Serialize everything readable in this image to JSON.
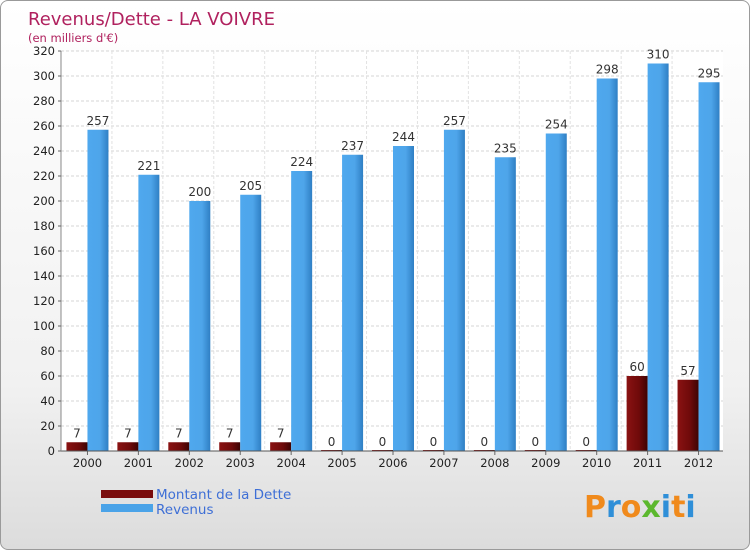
{
  "chart_data": {
    "type": "bar",
    "title": "Revenus/Dette - LA VOIVRE",
    "subtitle": "(en milliers d'€)",
    "categories": [
      "2000",
      "2001",
      "2002",
      "2003",
      "2004",
      "2005",
      "2006",
      "2007",
      "2008",
      "2009",
      "2010",
      "2011",
      "2012"
    ],
    "series": [
      {
        "name": "Montant de la Dette",
        "color": "#7a0c0c",
        "values": [
          7,
          7,
          7,
          7,
          7,
          0,
          0,
          0,
          0,
          0,
          0,
          60,
          57
        ]
      },
      {
        "name": "Revenus",
        "color": "#4aa3e8",
        "values": [
          257,
          221,
          200,
          205,
          224,
          237,
          244,
          257,
          235,
          254,
          298,
          310,
          295
        ]
      }
    ],
    "ylim": [
      0,
      320
    ],
    "yticks": [
      0,
      20,
      40,
      60,
      80,
      100,
      120,
      140,
      160,
      180,
      200,
      220,
      240,
      260,
      280,
      300,
      320
    ],
    "grid": true,
    "legend_position": "bottom-left"
  },
  "brand": {
    "letters": [
      "P",
      "r",
      "o",
      "x",
      "i",
      "t",
      "i"
    ],
    "colors": [
      "#f08a1c",
      "#2f8fd8",
      "#f08a1c",
      "#5cb82e",
      "#2f8fd8",
      "#f08a1c",
      "#2f8fd8"
    ]
  }
}
